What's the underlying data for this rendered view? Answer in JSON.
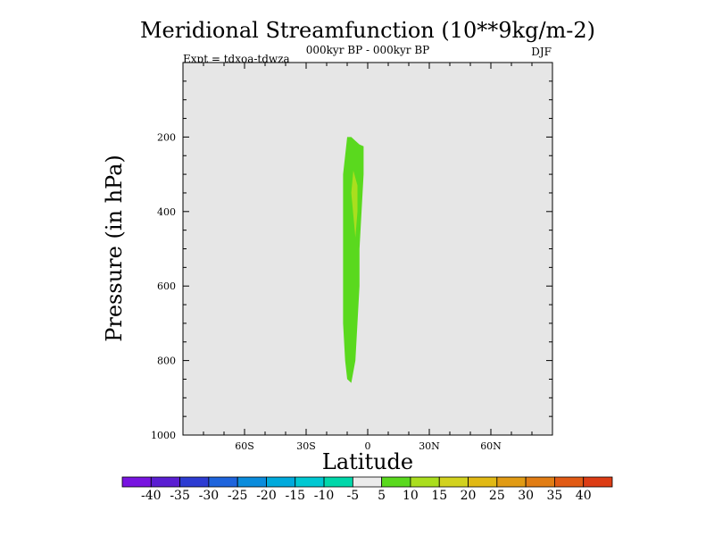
{
  "chart_data": {
    "type": "contour",
    "title": "Meridional Streamfunction (10**9kg/m-2)",
    "subtitle": "000kyr BP - 000kyr BP",
    "experiment_label": "Expt = tdxoa-tdwza",
    "season": "DJF",
    "xlabel": "Latitude",
    "ylabel": "Pressure (in hPa)",
    "xlim": [
      -90,
      90
    ],
    "ylim": [
      1000,
      0
    ],
    "x_ticks": [
      {
        "value": -60,
        "label": "60S"
      },
      {
        "value": -30,
        "label": "30S"
      },
      {
        "value": 0,
        "label": "0"
      },
      {
        "value": 30,
        "label": "30N"
      },
      {
        "value": 60,
        "label": "60N"
      }
    ],
    "y_ticks": [
      {
        "value": 200,
        "label": "200"
      },
      {
        "value": 400,
        "label": "400"
      },
      {
        "value": 600,
        "label": "600"
      },
      {
        "value": 800,
        "label": "800"
      },
      {
        "value": 1000,
        "label": "1000"
      }
    ],
    "background_color": "#e6e6e6",
    "contour_regions": [
      {
        "level_range": [
          5,
          10
        ],
        "color": "#5ad91e",
        "outline": [
          [
            -10,
            200
          ],
          [
            -8,
            200
          ],
          [
            -6,
            210
          ],
          [
            -4,
            220
          ],
          [
            -2,
            225
          ],
          [
            -2,
            300
          ],
          [
            -3,
            400
          ],
          [
            -4,
            500
          ],
          [
            -4,
            600
          ],
          [
            -5,
            700
          ],
          [
            -6,
            800
          ],
          [
            -8,
            860
          ],
          [
            -10,
            850
          ],
          [
            -11,
            800
          ],
          [
            -12,
            700
          ],
          [
            -12,
            600
          ],
          [
            -12,
            500
          ],
          [
            -12,
            400
          ],
          [
            -12,
            300
          ],
          [
            -11,
            250
          ]
        ]
      },
      {
        "level_range": [
          10,
          15
        ],
        "color": "#aade1e",
        "outline": [
          [
            -7,
            290
          ],
          [
            -5,
            330
          ],
          [
            -5,
            400
          ],
          [
            -6,
            470
          ],
          [
            -7,
            410
          ],
          [
            -8,
            350
          ]
        ]
      }
    ],
    "colorbar": {
      "colors": [
        "#7814e0",
        "#5a1ed2",
        "#2d3cd2",
        "#1e64dc",
        "#0a8cdc",
        "#00aadc",
        "#00c8d2",
        "#00d7aa",
        "#ebebeb",
        "#5ad91e",
        "#aade1e",
        "#d2d21e",
        "#e1b914",
        "#e19b14",
        "#e17d14",
        "#e15a14",
        "#dc3c14"
      ],
      "labels": [
        "-40",
        "-35",
        "-30",
        "-25",
        "-20",
        "-15",
        "-10",
        "-5",
        "5",
        "10",
        "15",
        "20",
        "25",
        "30",
        "35",
        "40"
      ]
    }
  }
}
